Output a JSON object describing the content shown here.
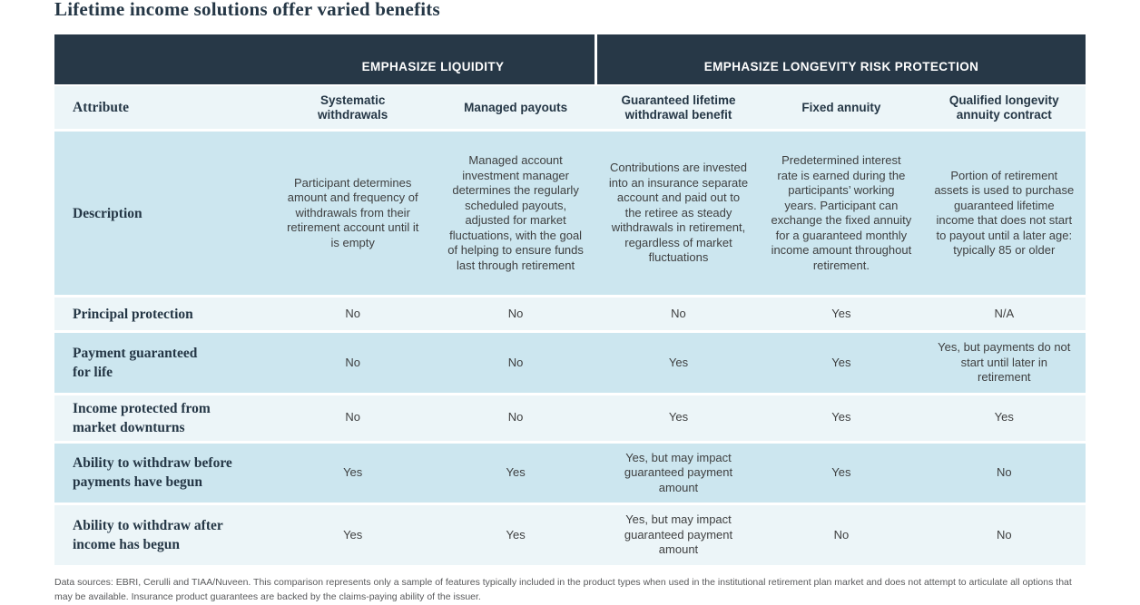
{
  "title": "Lifetime income solutions offer varied benefits",
  "table": {
    "group_headers": [
      {
        "label": "EMPHASIZE LIQUIDITY",
        "span": 2
      },
      {
        "label": "EMPHASIZE LONGEVITY RISK PROTECTION",
        "span": 3
      }
    ],
    "corner_label": "Attribute",
    "columns": [
      "Systematic\nwithdrawals",
      "Managed payouts",
      "Guaranteed lifetime\nwithdrawal benefit",
      "Fixed annuity",
      "Qualified longevity\nannuity contract"
    ],
    "rows": [
      {
        "label": "Description",
        "cells": [
          "Participant determines amount and frequency of withdrawals from their retirement account until it is empty",
          "Managed account investment manager determines the regularly scheduled payouts, adjusted for market fluctuations, with the goal of helping to ensure funds last through retirement",
          "Contributions are invested into an insurance separate account and paid out to the retiree as steady withdrawals in retirement, regardless of market fluctuations",
          "Predetermined interest rate is earned during the participants’ working years. Participant can exchange the fixed annuity for a guaranteed monthly income amount throughout retirement.",
          "Portion of retirement assets is used to purchase guaranteed lifetime income that does not start to payout until a later age: typically 85 or older"
        ]
      },
      {
        "label": "Principal protection",
        "cells": [
          "No",
          "No",
          "No",
          "Yes",
          "N/A"
        ]
      },
      {
        "label": "Payment guaranteed\nfor life",
        "cells": [
          "No",
          "No",
          "Yes",
          "Yes",
          "Yes, but payments do not start until later in retirement"
        ]
      },
      {
        "label": "Income protected from\nmarket downturns",
        "cells": [
          "No",
          "No",
          "Yes",
          "Yes",
          "Yes"
        ]
      },
      {
        "label": "Ability to withdraw before\npayments have begun",
        "cells": [
          "Yes",
          "Yes",
          "Yes, but may impact guaranteed payment amount",
          "Yes",
          "No"
        ]
      },
      {
        "label": "Ability to withdraw after\nincome has begun",
        "cells": [
          "Yes",
          "Yes",
          "Yes, but may impact guaranteed payment amount",
          "No",
          "No"
        ]
      }
    ]
  },
  "footnote": "Data sources: EBRI, Cerulli and TIAA/Nuveen. This comparison represents only a sample of features typically included in the product types when used in the institutional retirement plan market and does not attempt to articulate all options that may be available. Insurance product guarantees are backed by the claims-paying ability of the issuer.",
  "colors": {
    "band_background": "#273847",
    "row_blue": "#cce6ef",
    "row_pale": "#ecf5f8",
    "heading_navy": "#253746",
    "cell_text": "#3f4041",
    "footnote_gray": "#58595b"
  }
}
